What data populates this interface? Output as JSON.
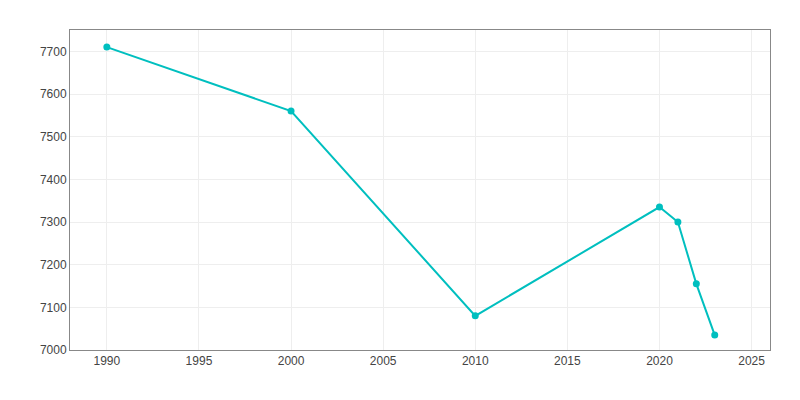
{
  "chart_data": {
    "type": "line",
    "x": [
      1990,
      2000,
      2010,
      2020,
      2021,
      2022,
      2023
    ],
    "values": [
      7710,
      7560,
      7080,
      7335,
      7300,
      7155,
      7035
    ],
    "color": "#00BFBF",
    "marker": "circle",
    "xlim": [
      1988,
      2026
    ],
    "ylim": [
      7000,
      7750
    ],
    "xticks": [
      1990,
      1995,
      2000,
      2005,
      2010,
      2015,
      2020,
      2025
    ],
    "yticks": [
      7000,
      7100,
      7200,
      7300,
      7400,
      7500,
      7600,
      7700
    ],
    "grid": true
  }
}
